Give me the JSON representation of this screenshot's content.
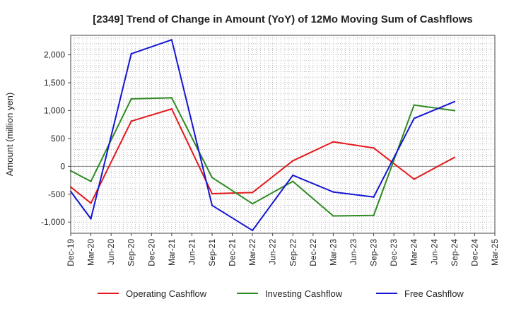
{
  "chart_data": {
    "type": "line",
    "title": "[2349]  Trend of Change in Amount (YoY) of 12Mo Moving Sum of Cashflows",
    "xlabel": "",
    "ylabel": "Amount (million yen)",
    "ylim": [
      -1200,
      2350
    ],
    "yticks": [
      -1000,
      -500,
      0,
      500,
      1000,
      1500,
      2000
    ],
    "ytick_labels": [
      "-1,000",
      "-500",
      "0",
      "500",
      "1,000",
      "1,500",
      "2,000"
    ],
    "categories": [
      "Dec-19",
      "Mar-20",
      "Jun-20",
      "Sep-20",
      "Dec-20",
      "Mar-21",
      "Jun-21",
      "Sep-21",
      "Dec-21",
      "Mar-22",
      "Jun-22",
      "Sep-22",
      "Dec-22",
      "Mar-23",
      "Jun-23",
      "Sep-23",
      "Dec-23",
      "Mar-24",
      "Jun-24",
      "Sep-24",
      "Dec-24",
      "Mar-25"
    ],
    "grid": true,
    "legend_position": "bottom",
    "series": [
      {
        "name": "Operating Cashflow",
        "color": "#e41a1c",
        "values": [
          -370,
          -660,
          null,
          810,
          null,
          1030,
          null,
          -490,
          null,
          -470,
          null,
          100,
          null,
          440,
          null,
          330,
          null,
          -230,
          null,
          160,
          null,
          null
        ]
      },
      {
        "name": "Investing Cashflow",
        "color": "#2e8b22",
        "values": [
          -80,
          -270,
          null,
          1210,
          null,
          1230,
          null,
          -200,
          null,
          -670,
          null,
          -270,
          null,
          -890,
          null,
          -880,
          null,
          1100,
          null,
          1000,
          null,
          null
        ]
      },
      {
        "name": "Free Cashflow",
        "color": "#1515d4",
        "values": [
          -450,
          -940,
          null,
          2020,
          null,
          2270,
          null,
          -700,
          null,
          -1150,
          null,
          -160,
          null,
          -460,
          null,
          -550,
          null,
          860,
          null,
          1160,
          null,
          null
        ]
      }
    ]
  }
}
